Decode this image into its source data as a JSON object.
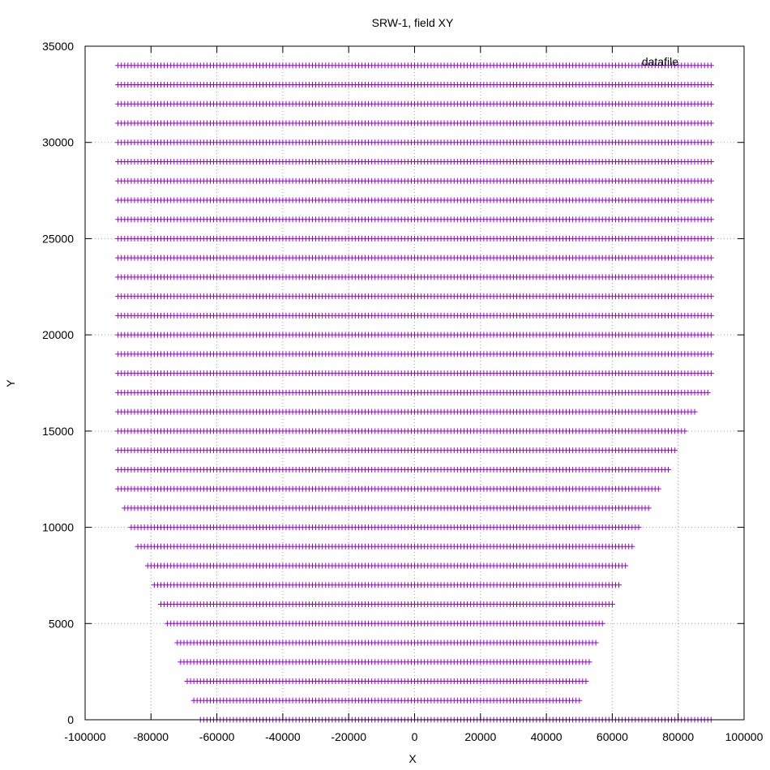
{
  "chart_data": {
    "type": "scatter",
    "title": "SRW-1, field XY",
    "xlabel": "X",
    "ylabel": "Y",
    "xlim": [
      -100000,
      100000
    ],
    "ylim": [
      0,
      35000
    ],
    "x_ticks": [
      -100000,
      -80000,
      -60000,
      -40000,
      -20000,
      0,
      20000,
      40000,
      60000,
      80000,
      100000
    ],
    "y_ticks": [
      0,
      5000,
      10000,
      15000,
      20000,
      25000,
      30000,
      35000
    ],
    "x_tick_labels": [
      "-100000",
      "-80000",
      "-60000",
      "-40000",
      "-20000",
      "0",
      "20000",
      "40000",
      "60000",
      "80000",
      "100000"
    ],
    "y_tick_labels": [
      "0",
      "5000",
      "10000",
      "15000",
      "20000",
      "25000",
      "30000",
      "35000"
    ],
    "grid": true,
    "marker": "plus",
    "marker_spacing_x": 1000,
    "series": [
      {
        "name": "datafile",
        "color": "#9400d3",
        "rows": [
          {
            "y": 0,
            "xmin": -65000,
            "xmax": 90000
          },
          {
            "y": 1000,
            "xmin": -67000,
            "xmax": 50000
          },
          {
            "y": 2000,
            "xmin": -69000,
            "xmax": 52000
          },
          {
            "y": 3000,
            "xmin": -71000,
            "xmax": 53000
          },
          {
            "y": 4000,
            "xmin": -72000,
            "xmax": 55000
          },
          {
            "y": 5000,
            "xmin": -75000,
            "xmax": 57000
          },
          {
            "y": 6000,
            "xmin": -77000,
            "xmax": 60000
          },
          {
            "y": 7000,
            "xmin": -79000,
            "xmax": 62000
          },
          {
            "y": 8000,
            "xmin": -81000,
            "xmax": 64000
          },
          {
            "y": 9000,
            "xmin": -84000,
            "xmax": 66000
          },
          {
            "y": 10000,
            "xmin": -86000,
            "xmax": 68000
          },
          {
            "y": 11000,
            "xmin": -88000,
            "xmax": 71000
          },
          {
            "y": 12000,
            "xmin": -90000,
            "xmax": 74000
          },
          {
            "y": 13000,
            "xmin": -90000,
            "xmax": 77000
          },
          {
            "y": 14000,
            "xmin": -90000,
            "xmax": 79000
          },
          {
            "y": 15000,
            "xmin": -90000,
            "xmax": 82000
          },
          {
            "y": 16000,
            "xmin": -90000,
            "xmax": 85000
          },
          {
            "y": 17000,
            "xmin": -90000,
            "xmax": 89000
          },
          {
            "y": 18000,
            "xmin": -90000,
            "xmax": 90000
          },
          {
            "y": 19000,
            "xmin": -90000,
            "xmax": 90000
          },
          {
            "y": 20000,
            "xmin": -90000,
            "xmax": 90000
          },
          {
            "y": 21000,
            "xmin": -90000,
            "xmax": 90000
          },
          {
            "y": 22000,
            "xmin": -90000,
            "xmax": 90000
          },
          {
            "y": 23000,
            "xmin": -90000,
            "xmax": 90000
          },
          {
            "y": 24000,
            "xmin": -90000,
            "xmax": 90000
          },
          {
            "y": 25000,
            "xmin": -90000,
            "xmax": 90000
          },
          {
            "y": 26000,
            "xmin": -90000,
            "xmax": 90000
          },
          {
            "y": 27000,
            "xmin": -90000,
            "xmax": 90000
          },
          {
            "y": 28000,
            "xmin": -90000,
            "xmax": 90000
          },
          {
            "y": 29000,
            "xmin": -90000,
            "xmax": 90000
          },
          {
            "y": 30000,
            "xmin": -90000,
            "xmax": 90000
          },
          {
            "y": 31000,
            "xmin": -90000,
            "xmax": 90000
          },
          {
            "y": 32000,
            "xmin": -90000,
            "xmax": 90000
          },
          {
            "y": 33000,
            "xmin": -90000,
            "xmax": 90000
          },
          {
            "y": 34000,
            "xmin": -90000,
            "xmax": 90000
          }
        ]
      }
    ],
    "legend": {
      "position": "top-right",
      "label": "datafile"
    }
  }
}
